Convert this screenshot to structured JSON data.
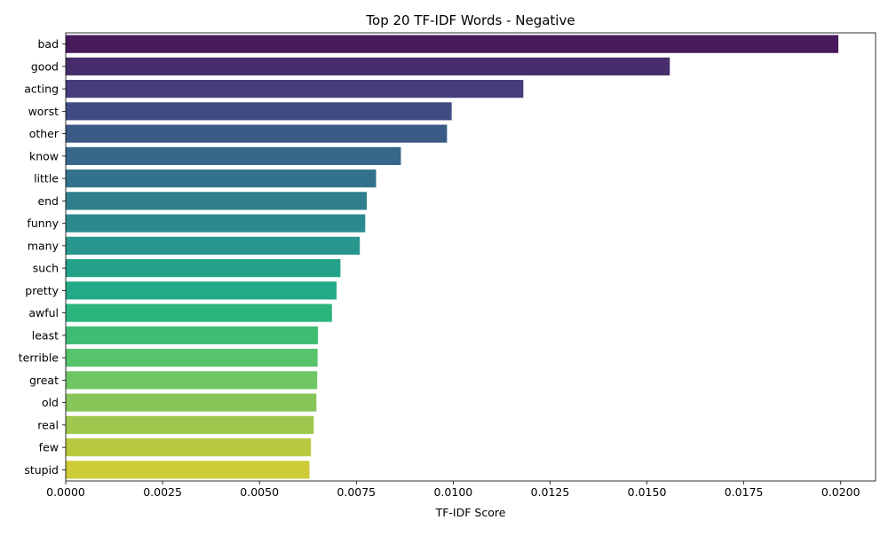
{
  "chart_data": {
    "type": "bar",
    "orientation": "horizontal",
    "title": "Top 20 TF-IDF Words - Negative",
    "xlabel": "TF-IDF Score",
    "ylabel": "",
    "xlim": [
      0,
      0.0209
    ],
    "xticks": [
      0.0,
      0.0025,
      0.005,
      0.0075,
      0.01,
      0.0125,
      0.015,
      0.0175,
      0.02
    ],
    "xtick_labels": [
      "0.0000",
      "0.0025",
      "0.0050",
      "0.0075",
      "0.0100",
      "0.0125",
      "0.0150",
      "0.0175",
      "0.0200"
    ],
    "grid": false,
    "legend": "none",
    "categories": [
      "bad",
      "good",
      "acting",
      "worst",
      "other",
      "know",
      "little",
      "end",
      "funny",
      "many",
      "such",
      "pretty",
      "awful",
      "least",
      "terrible",
      "great",
      "old",
      "real",
      "few",
      "stupid"
    ],
    "values": [
      0.01994,
      0.01559,
      0.01181,
      0.00996,
      0.00984,
      0.00865,
      0.00801,
      0.00777,
      0.00773,
      0.00759,
      0.00709,
      0.00699,
      0.00687,
      0.00651,
      0.0065,
      0.00649,
      0.00647,
      0.0064,
      0.00633,
      0.00629
    ],
    "colors": [
      "#481A5C",
      "#472D6B",
      "#443D79",
      "#3F4C82",
      "#3C5A86",
      "#37678A",
      "#33728C",
      "#2F7F8E",
      "#2B8A8E",
      "#28968D",
      "#23A189",
      "#23A987",
      "#2BB47D",
      "#3EBC74",
      "#57C36B",
      "#6EC663",
      "#87C559",
      "#9DC74D",
      "#B7C93E",
      "#CDCB37"
    ]
  }
}
